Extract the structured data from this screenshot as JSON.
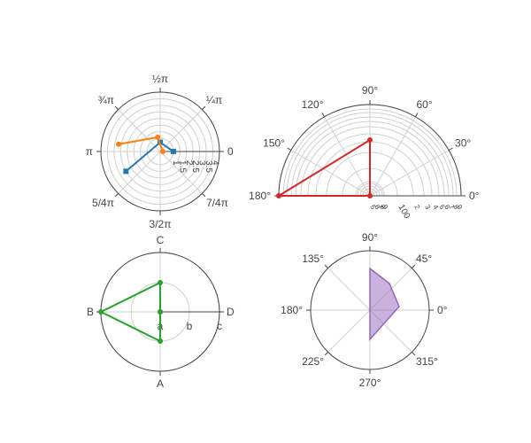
{
  "colors": {
    "blue": "#1f77b4",
    "orange": "#ff7f0e",
    "red": "#d62728",
    "green": "#2ca02c",
    "purple": "#9467bd",
    "axis": "#444444",
    "grid": "#d0d0d0"
  },
  "chart_data": [
    {
      "type": "line",
      "subplot": "radians polar",
      "angular_unit": "radians",
      "angular_ticks": [
        "0",
        "¼π",
        "½π",
        "¾π",
        "π",
        "5/4π",
        "3/2π",
        "7/4π"
      ],
      "radial_ticks": [
        "1",
        "1.5",
        "2",
        "2.5",
        "3",
        "3.5",
        "4"
      ],
      "radial_range": [
        0,
        4.5
      ],
      "series": [
        {
          "color": "blue",
          "marker": "square",
          "r": [
            1,
            0.7,
            3
          ],
          "theta_deg": [
            0,
            90,
            210
          ]
        },
        {
          "color": "orange",
          "marker": "circle",
          "r": [
            0.2,
            1.1,
            3.2
          ],
          "theta_deg": [
            0,
            100,
            170
          ]
        }
      ]
    },
    {
      "type": "line",
      "subplot": "semicircle polar (log radial)",
      "angular_unit": "degrees",
      "angular_ticks": [
        "0°",
        "30°",
        "60°",
        "90°",
        "120°",
        "150°",
        "180°"
      ],
      "radial_type": "log",
      "radial_ticks": [
        "5",
        "6",
        "7",
        "8",
        "9",
        "100",
        "2",
        "3",
        "4",
        "5",
        "6",
        "7",
        "8",
        "9"
      ],
      "series": [
        {
          "color": "red",
          "marker": "circle",
          "r": [
            100,
            1000,
            100,
            1000
          ],
          "theta_deg": [
            0,
            90,
            90,
            180
          ]
        }
      ]
    },
    {
      "type": "line",
      "subplot": "categorical polar",
      "angular_ticks": [
        "D",
        "C",
        "B",
        "A"
      ],
      "radial_ticks": [
        "a",
        "b",
        "c"
      ],
      "series": [
        {
          "color": "green",
          "marker": "circle",
          "r": [
            "a",
            "a",
            "c",
            "a",
            "a"
          ],
          "theta": [
            "A",
            "A",
            "B",
            "C",
            "D"
          ]
        }
      ]
    },
    {
      "type": "area",
      "subplot": "filled polar",
      "angular_unit": "degrees",
      "angular_ticks": [
        "0°",
        "45°",
        "90°",
        "135°",
        "180°",
        "225°",
        "270°",
        "315°"
      ],
      "radial_range": [
        0,
        3
      ],
      "series": [
        {
          "color": "purple",
          "fill": "toself",
          "r": [
            0,
            1.5,
            1.5,
            0,
            2.5,
            2.5,
            0
          ],
          "theta_deg": [
            0,
            0,
            10,
            0,
            70,
            80,
            0
          ]
        }
      ]
    }
  ]
}
